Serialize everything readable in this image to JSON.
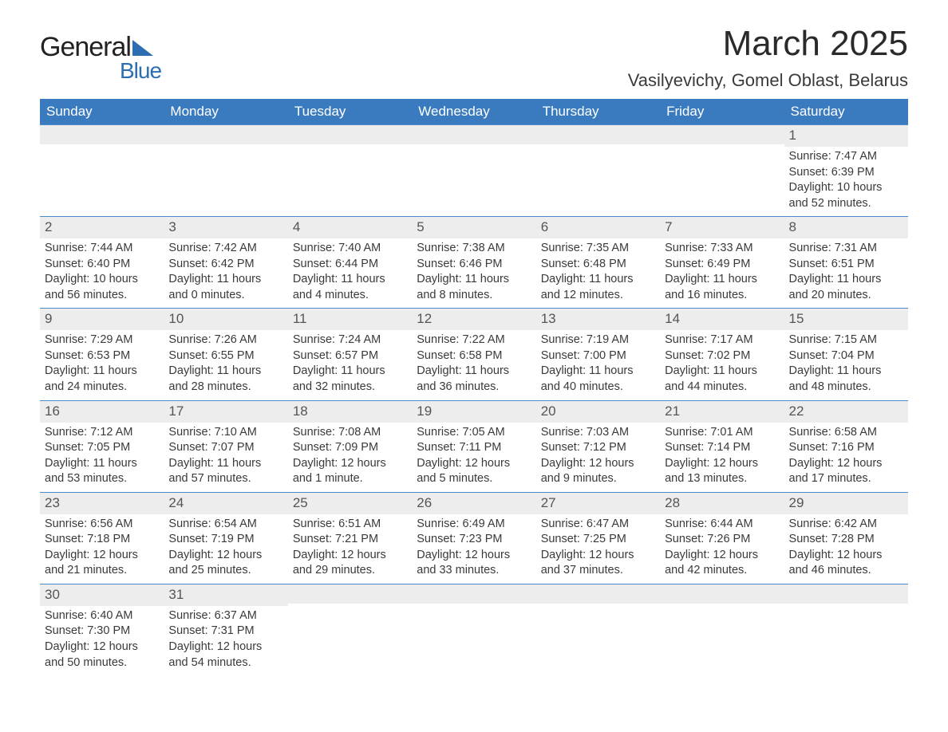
{
  "logo": {
    "text1": "General",
    "text2": "Blue"
  },
  "title": "March 2025",
  "location": "Vasilyevichy, Gomel Oblast, Belarus",
  "colors": {
    "header_bg": "#3a7bbf",
    "header_text": "#ffffff",
    "row_divider": "#4a8bc9",
    "daynum_bg": "#ededed",
    "text": "#3a3a3a",
    "logo_accent": "#2c6fb0"
  },
  "weekdays": [
    "Sunday",
    "Monday",
    "Tuesday",
    "Wednesday",
    "Thursday",
    "Friday",
    "Saturday"
  ],
  "weeks": [
    [
      null,
      null,
      null,
      null,
      null,
      null,
      {
        "n": "1",
        "sr": "Sunrise: 7:47 AM",
        "ss": "Sunset: 6:39 PM",
        "d1": "Daylight: 10 hours",
        "d2": "and 52 minutes."
      }
    ],
    [
      {
        "n": "2",
        "sr": "Sunrise: 7:44 AM",
        "ss": "Sunset: 6:40 PM",
        "d1": "Daylight: 10 hours",
        "d2": "and 56 minutes."
      },
      {
        "n": "3",
        "sr": "Sunrise: 7:42 AM",
        "ss": "Sunset: 6:42 PM",
        "d1": "Daylight: 11 hours",
        "d2": "and 0 minutes."
      },
      {
        "n": "4",
        "sr": "Sunrise: 7:40 AM",
        "ss": "Sunset: 6:44 PM",
        "d1": "Daylight: 11 hours",
        "d2": "and 4 minutes."
      },
      {
        "n": "5",
        "sr": "Sunrise: 7:38 AM",
        "ss": "Sunset: 6:46 PM",
        "d1": "Daylight: 11 hours",
        "d2": "and 8 minutes."
      },
      {
        "n": "6",
        "sr": "Sunrise: 7:35 AM",
        "ss": "Sunset: 6:48 PM",
        "d1": "Daylight: 11 hours",
        "d2": "and 12 minutes."
      },
      {
        "n": "7",
        "sr": "Sunrise: 7:33 AM",
        "ss": "Sunset: 6:49 PM",
        "d1": "Daylight: 11 hours",
        "d2": "and 16 minutes."
      },
      {
        "n": "8",
        "sr": "Sunrise: 7:31 AM",
        "ss": "Sunset: 6:51 PM",
        "d1": "Daylight: 11 hours",
        "d2": "and 20 minutes."
      }
    ],
    [
      {
        "n": "9",
        "sr": "Sunrise: 7:29 AM",
        "ss": "Sunset: 6:53 PM",
        "d1": "Daylight: 11 hours",
        "d2": "and 24 minutes."
      },
      {
        "n": "10",
        "sr": "Sunrise: 7:26 AM",
        "ss": "Sunset: 6:55 PM",
        "d1": "Daylight: 11 hours",
        "d2": "and 28 minutes."
      },
      {
        "n": "11",
        "sr": "Sunrise: 7:24 AM",
        "ss": "Sunset: 6:57 PM",
        "d1": "Daylight: 11 hours",
        "d2": "and 32 minutes."
      },
      {
        "n": "12",
        "sr": "Sunrise: 7:22 AM",
        "ss": "Sunset: 6:58 PM",
        "d1": "Daylight: 11 hours",
        "d2": "and 36 minutes."
      },
      {
        "n": "13",
        "sr": "Sunrise: 7:19 AM",
        "ss": "Sunset: 7:00 PM",
        "d1": "Daylight: 11 hours",
        "d2": "and 40 minutes."
      },
      {
        "n": "14",
        "sr": "Sunrise: 7:17 AM",
        "ss": "Sunset: 7:02 PM",
        "d1": "Daylight: 11 hours",
        "d2": "and 44 minutes."
      },
      {
        "n": "15",
        "sr": "Sunrise: 7:15 AM",
        "ss": "Sunset: 7:04 PM",
        "d1": "Daylight: 11 hours",
        "d2": "and 48 minutes."
      }
    ],
    [
      {
        "n": "16",
        "sr": "Sunrise: 7:12 AM",
        "ss": "Sunset: 7:05 PM",
        "d1": "Daylight: 11 hours",
        "d2": "and 53 minutes."
      },
      {
        "n": "17",
        "sr": "Sunrise: 7:10 AM",
        "ss": "Sunset: 7:07 PM",
        "d1": "Daylight: 11 hours",
        "d2": "and 57 minutes."
      },
      {
        "n": "18",
        "sr": "Sunrise: 7:08 AM",
        "ss": "Sunset: 7:09 PM",
        "d1": "Daylight: 12 hours",
        "d2": "and 1 minute."
      },
      {
        "n": "19",
        "sr": "Sunrise: 7:05 AM",
        "ss": "Sunset: 7:11 PM",
        "d1": "Daylight: 12 hours",
        "d2": "and 5 minutes."
      },
      {
        "n": "20",
        "sr": "Sunrise: 7:03 AM",
        "ss": "Sunset: 7:12 PM",
        "d1": "Daylight: 12 hours",
        "d2": "and 9 minutes."
      },
      {
        "n": "21",
        "sr": "Sunrise: 7:01 AM",
        "ss": "Sunset: 7:14 PM",
        "d1": "Daylight: 12 hours",
        "d2": "and 13 minutes."
      },
      {
        "n": "22",
        "sr": "Sunrise: 6:58 AM",
        "ss": "Sunset: 7:16 PM",
        "d1": "Daylight: 12 hours",
        "d2": "and 17 minutes."
      }
    ],
    [
      {
        "n": "23",
        "sr": "Sunrise: 6:56 AM",
        "ss": "Sunset: 7:18 PM",
        "d1": "Daylight: 12 hours",
        "d2": "and 21 minutes."
      },
      {
        "n": "24",
        "sr": "Sunrise: 6:54 AM",
        "ss": "Sunset: 7:19 PM",
        "d1": "Daylight: 12 hours",
        "d2": "and 25 minutes."
      },
      {
        "n": "25",
        "sr": "Sunrise: 6:51 AM",
        "ss": "Sunset: 7:21 PM",
        "d1": "Daylight: 12 hours",
        "d2": "and 29 minutes."
      },
      {
        "n": "26",
        "sr": "Sunrise: 6:49 AM",
        "ss": "Sunset: 7:23 PM",
        "d1": "Daylight: 12 hours",
        "d2": "and 33 minutes."
      },
      {
        "n": "27",
        "sr": "Sunrise: 6:47 AM",
        "ss": "Sunset: 7:25 PM",
        "d1": "Daylight: 12 hours",
        "d2": "and 37 minutes."
      },
      {
        "n": "28",
        "sr": "Sunrise: 6:44 AM",
        "ss": "Sunset: 7:26 PM",
        "d1": "Daylight: 12 hours",
        "d2": "and 42 minutes."
      },
      {
        "n": "29",
        "sr": "Sunrise: 6:42 AM",
        "ss": "Sunset: 7:28 PM",
        "d1": "Daylight: 12 hours",
        "d2": "and 46 minutes."
      }
    ],
    [
      {
        "n": "30",
        "sr": "Sunrise: 6:40 AM",
        "ss": "Sunset: 7:30 PM",
        "d1": "Daylight: 12 hours",
        "d2": "and 50 minutes."
      },
      {
        "n": "31",
        "sr": "Sunrise: 6:37 AM",
        "ss": "Sunset: 7:31 PM",
        "d1": "Daylight: 12 hours",
        "d2": "and 54 minutes."
      },
      null,
      null,
      null,
      null,
      null
    ]
  ]
}
